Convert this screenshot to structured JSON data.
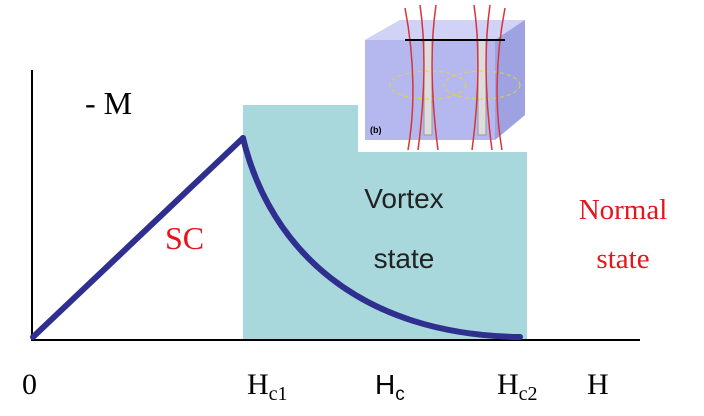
{
  "axes": {
    "y_label": "- M",
    "x_label": "H",
    "origin": "0"
  },
  "ticks": [
    {
      "main": "H",
      "sub": "c1"
    },
    {
      "main": "H",
      "sub": "c"
    },
    {
      "main": "H",
      "sub": "c2"
    }
  ],
  "regions": {
    "sc": "SC",
    "vortex": [
      "Vortex",
      "state"
    ],
    "normal": [
      "Normal",
      "state"
    ]
  },
  "inset": {
    "label": "(b)"
  }
}
